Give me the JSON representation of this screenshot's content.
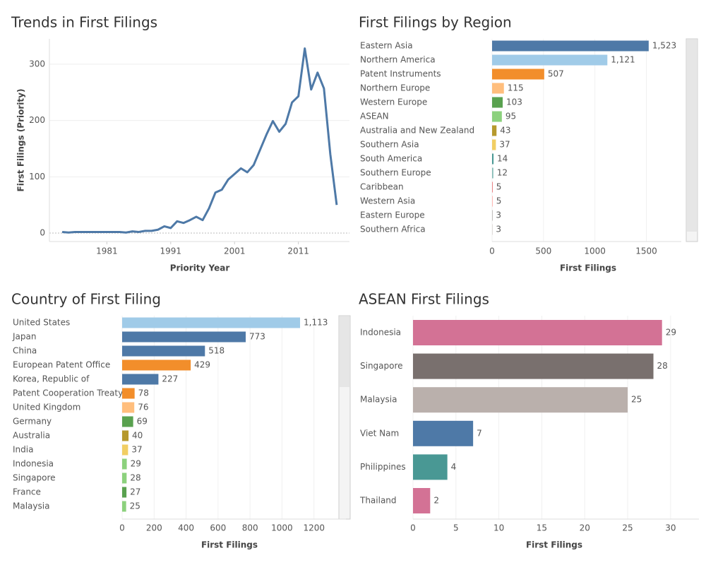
{
  "chart_data": [
    {
      "type": "line",
      "title": "Trends in First Filings",
      "x_label": "Priority Year",
      "y_label": "First Filings (Priority)",
      "x": [
        1974,
        1975,
        1976,
        1977,
        1978,
        1979,
        1980,
        1981,
        1982,
        1983,
        1984,
        1985,
        1986,
        1987,
        1988,
        1989,
        1990,
        1991,
        1992,
        1993,
        1994,
        1995,
        1996,
        1997,
        1998,
        1999,
        2000,
        2001,
        2002,
        2003,
        2004,
        2005,
        2006,
        2007,
        2008,
        2009,
        2010,
        2011,
        2012,
        2013,
        2014,
        2015,
        2016,
        2017
      ],
      "series": [
        {
          "name": "First Filings",
          "color": "#4e79a7",
          "values": [
            2,
            1,
            2,
            2,
            2,
            2,
            2,
            2,
            2,
            2,
            1,
            3,
            2,
            4,
            4,
            6,
            12,
            9,
            21,
            18,
            23,
            29,
            23,
            44,
            72,
            77,
            95,
            105,
            115,
            108,
            121,
            148,
            175,
            199,
            180,
            194,
            232,
            243,
            328,
            255,
            285,
            257,
            140,
            50
          ]
        }
      ],
      "xlim": [
        1972,
        2019
      ],
      "xticks": [
        1981,
        1991,
        2001,
        2011
      ],
      "ylim": [
        -15,
        345
      ],
      "yticks": [
        0,
        100,
        200,
        300
      ],
      "grid": true
    },
    {
      "type": "hbar",
      "title": "First Filings by Region",
      "x_label": "First Filings",
      "categories": [
        "Eastern Asia",
        "Northern America",
        "Patent Instruments",
        "Northern Europe",
        "Western Europe",
        "ASEAN",
        "Australia and New Zealand",
        "Southern Asia",
        "South America",
        "Southern Europe",
        "Caribbean",
        "Western Asia",
        "Eastern Europe",
        "Southern Africa"
      ],
      "values": [
        1523,
        1121,
        507,
        115,
        103,
        95,
        43,
        37,
        14,
        12,
        5,
        5,
        3,
        3
      ],
      "value_labels": [
        "1,523",
        "1,121",
        "507",
        "115",
        "103",
        "95",
        "43",
        "37",
        "14",
        "12",
        "5",
        "5",
        "3",
        "3"
      ],
      "colors": [
        "#4e79a7",
        "#a0cbe8",
        "#f28e2b",
        "#ffbe7d",
        "#59a14f",
        "#8cd17d",
        "#b6992d",
        "#f1ce63",
        "#499894",
        "#86bcb6",
        "#e15759",
        "#ff9d9a",
        "#79706e",
        "#bab0ac"
      ],
      "xlim": [
        0,
        1840
      ],
      "xticks": [
        0,
        500,
        1000,
        1500
      ],
      "grid": true
    },
    {
      "type": "hbar",
      "title": "Country of First Filing",
      "x_label": "First Filings",
      "categories": [
        "United States",
        "Japan",
        "China",
        "European Patent Office",
        "Korea, Republic of",
        "Patent Cooperation Treaty",
        "United Kingdom",
        "Germany",
        "Australia",
        "India",
        "Indonesia",
        "Singapore",
        "France",
        "Malaysia"
      ],
      "values": [
        1113,
        773,
        518,
        429,
        227,
        78,
        76,
        69,
        40,
        37,
        29,
        28,
        27,
        25
      ],
      "value_labels": [
        "1,113",
        "773",
        "518",
        "429",
        "227",
        "78",
        "76",
        "69",
        "40",
        "37",
        "29",
        "28",
        "27",
        "25"
      ],
      "colors": [
        "#a0cbe8",
        "#4e79a7",
        "#4e79a7",
        "#f28e2b",
        "#4e79a7",
        "#f28e2b",
        "#ffbe7d",
        "#59a14f",
        "#b6992d",
        "#f1ce63",
        "#8cd17d",
        "#8cd17d",
        "#59a14f",
        "#8cd17d"
      ],
      "xlim": [
        0,
        1400
      ],
      "xticks": [
        0,
        200,
        400,
        600,
        800,
        1000,
        1200
      ],
      "grid": true
    },
    {
      "type": "hbar",
      "title": "ASEAN First Filings",
      "x_label": "First Filings",
      "categories": [
        "Indonesia",
        "Singapore",
        "Malaysia",
        "Viet Nam",
        "Philippines",
        "Thailand"
      ],
      "values": [
        29,
        28,
        25,
        7,
        4,
        2
      ],
      "colors": [
        "#d37295",
        "#79706e",
        "#bab0ac",
        "#4e79a7",
        "#499894",
        "#d37295"
      ],
      "xlim": [
        0,
        33.3
      ],
      "xticks": [
        0,
        5,
        10,
        15,
        20,
        25,
        30
      ],
      "grid": true
    }
  ]
}
